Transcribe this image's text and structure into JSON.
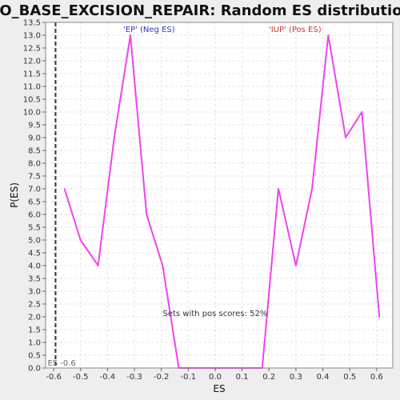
{
  "chart_data": {
    "type": "line",
    "title": "GO_BASE_EXCISION_REPAIR: Random ES distribution",
    "xlabel": "ES",
    "ylabel": "P(ES)",
    "xlim": [
      -0.63,
      0.66
    ],
    "ylim": [
      0,
      13.5
    ],
    "x_ticks": [
      "-0.6",
      "-0.5",
      "-0.4",
      "-0.3",
      "-0.2",
      "-0.1",
      "0.0",
      "0.1",
      "0.2",
      "0.3",
      "0.4",
      "0.5",
      "0.6"
    ],
    "y_ticks": [
      "0.0",
      "0.5",
      "1.0",
      "1.5",
      "2.0",
      "2.5",
      "3.0",
      "3.5",
      "4.0",
      "4.5",
      "5.0",
      "5.5",
      "6.0",
      "6.5",
      "7.0",
      "7.5",
      "8.0",
      "8.5",
      "9.0",
      "9.5",
      "10.0",
      "10.5",
      "11.0",
      "11.5",
      "12.0",
      "12.5",
      "13.0",
      "13.5"
    ],
    "grid": true,
    "series": [
      {
        "color": "#ee44ee",
        "x": [
          -0.56,
          -0.5,
          -0.435,
          -0.375,
          -0.315,
          -0.255,
          -0.195,
          -0.135,
          -0.075,
          -0.015,
          0.045,
          0.11,
          0.175,
          0.235,
          0.3,
          0.36,
          0.42,
          0.485,
          0.545,
          0.61
        ],
        "y": [
          7.0,
          5.0,
          4.0,
          9.0,
          13.0,
          6.0,
          4.0,
          0.0,
          0.0,
          0.0,
          0.0,
          0.0,
          0.0,
          7.0,
          4.0,
          7.0,
          13.0,
          9.0,
          10.0,
          2.0
        ]
      }
    ],
    "vline": {
      "x": -0.593,
      "label": "ES -0.6",
      "color": "#333333"
    },
    "annotations": {
      "neg": {
        "text": "'EP' (Neg ES)",
        "color": "#3333cc"
      },
      "pos": {
        "text": "'IUP' (Pos ES)",
        "color": "#cc3333"
      },
      "pos_scores": {
        "text": "Sets with pos scores: 52%",
        "x": 0.0,
        "y": 2.0,
        "color": "#333333"
      }
    }
  }
}
